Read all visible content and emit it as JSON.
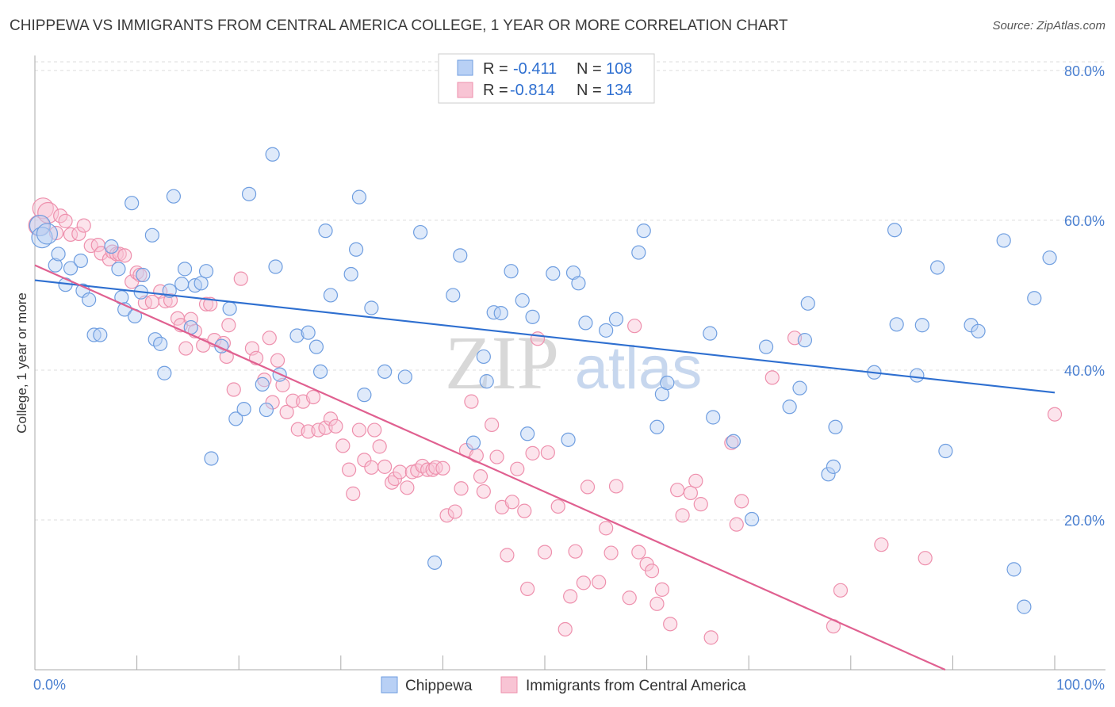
{
  "title": "CHIPPEWA VS IMMIGRANTS FROM CENTRAL AMERICA COLLEGE, 1 YEAR OR MORE CORRELATION CHART",
  "source": "Source: ZipAtlas.com",
  "watermark": {
    "zip": "ZIP",
    "atlas": "atlas"
  },
  "colors": {
    "chippewa_fill": "#b8d0f5",
    "chippewa_stroke": "#6f9ee0",
    "chippewa_line": "#2e6fd0",
    "central_fill": "#f8c4d4",
    "central_stroke": "#ee90ad",
    "central_line": "#e06090",
    "tick": "#4a7fd0",
    "grid": "#dddddd"
  },
  "legend": {
    "row1": {
      "r_label": "R =",
      "r_value": "-0.411",
      "n_label": "N =",
      "n_value": "108"
    },
    "row2": {
      "r_label": "R =",
      "r_value": "-0.814",
      "n_label": "N =",
      "n_value": "134"
    }
  },
  "chart_data": {
    "type": "scatter",
    "title": "CHIPPEWA VS IMMIGRANTS FROM CENTRAL AMERICA COLLEGE, 1 YEAR OR MORE CORRELATION CHART",
    "xlabel": "",
    "ylabel": "College, 1 year or more",
    "xlim": [
      0,
      100
    ],
    "ylim": [
      0,
      82
    ],
    "x_tick_labels": [
      "0.0%",
      "100.0%"
    ],
    "y_ticks": [
      20,
      40,
      60,
      80
    ],
    "y_tick_labels": [
      "20.0%",
      "40.0%",
      "60.0%",
      "80.0%"
    ],
    "grid": true,
    "legend_position": "top-center",
    "series": [
      {
        "name": "Chippewa",
        "color": "#b8d0f5",
        "trend": {
          "x": [
            0,
            100
          ],
          "y": [
            52.0,
            37.0
          ]
        },
        "points": [
          [
            0.5,
            59.3
          ],
          [
            0.7,
            57.7
          ],
          [
            1.2,
            58.2
          ],
          [
            2.0,
            54.0
          ],
          [
            2.3,
            55.5
          ],
          [
            3.0,
            51.4
          ],
          [
            3.5,
            53.6
          ],
          [
            4.5,
            54.6
          ],
          [
            4.7,
            50.6
          ],
          [
            5.3,
            49.4
          ],
          [
            5.8,
            44.7
          ],
          [
            6.4,
            44.7
          ],
          [
            7.5,
            56.5
          ],
          [
            8.2,
            53.5
          ],
          [
            8.5,
            49.7
          ],
          [
            8.8,
            48.1
          ],
          [
            9.5,
            62.3
          ],
          [
            9.8,
            47.2
          ],
          [
            10.4,
            50.4
          ],
          [
            10.6,
            52.7
          ],
          [
            11.5,
            58.0
          ],
          [
            11.8,
            44.1
          ],
          [
            12.3,
            43.5
          ],
          [
            12.7,
            39.6
          ],
          [
            13.2,
            50.6
          ],
          [
            13.6,
            63.2
          ],
          [
            14.4,
            51.5
          ],
          [
            14.7,
            53.5
          ],
          [
            15.3,
            45.7
          ],
          [
            15.7,
            51.3
          ],
          [
            16.3,
            51.6
          ],
          [
            16.8,
            53.2
          ],
          [
            17.3,
            28.2
          ],
          [
            18.3,
            43.2
          ],
          [
            19.1,
            48.2
          ],
          [
            19.7,
            33.5
          ],
          [
            20.5,
            34.8
          ],
          [
            21.0,
            63.5
          ],
          [
            22.3,
            38.1
          ],
          [
            22.7,
            34.7
          ],
          [
            23.3,
            68.8
          ],
          [
            23.6,
            53.8
          ],
          [
            24.0,
            39.4
          ],
          [
            25.7,
            44.6
          ],
          [
            26.8,
            45.0
          ],
          [
            27.6,
            43.1
          ],
          [
            28.0,
            39.8
          ],
          [
            28.5,
            58.6
          ],
          [
            29.0,
            50.0
          ],
          [
            31.0,
            52.8
          ],
          [
            31.5,
            56.1
          ],
          [
            31.8,
            63.1
          ],
          [
            32.3,
            36.7
          ],
          [
            33.0,
            48.3
          ],
          [
            34.3,
            39.8
          ],
          [
            36.3,
            39.1
          ],
          [
            37.8,
            58.4
          ],
          [
            39.2,
            14.3
          ],
          [
            41.0,
            50.0
          ],
          [
            41.7,
            55.3
          ],
          [
            43.0,
            30.3
          ],
          [
            44.0,
            41.8
          ],
          [
            44.3,
            38.5
          ],
          [
            45.0,
            47.7
          ],
          [
            45.7,
            47.6
          ],
          [
            46.7,
            53.2
          ],
          [
            47.8,
            49.3
          ],
          [
            48.3,
            31.5
          ],
          [
            48.8,
            47.1
          ],
          [
            50.8,
            52.9
          ],
          [
            52.3,
            30.7
          ],
          [
            52.8,
            53.0
          ],
          [
            53.3,
            51.6
          ],
          [
            54.0,
            46.3
          ],
          [
            56.0,
            45.3
          ],
          [
            57.0,
            46.8
          ],
          [
            59.2,
            55.7
          ],
          [
            59.7,
            58.6
          ],
          [
            61.0,
            32.4
          ],
          [
            61.5,
            36.8
          ],
          [
            62.0,
            38.3
          ],
          [
            66.2,
            44.9
          ],
          [
            66.5,
            33.7
          ],
          [
            68.5,
            30.5
          ],
          [
            70.3,
            20.1
          ],
          [
            71.7,
            43.1
          ],
          [
            74.0,
            35.1
          ],
          [
            75.0,
            37.6
          ],
          [
            75.5,
            44.0
          ],
          [
            75.8,
            48.9
          ],
          [
            77.8,
            26.1
          ],
          [
            78.3,
            27.1
          ],
          [
            78.5,
            32.4
          ],
          [
            82.3,
            39.7
          ],
          [
            84.3,
            58.7
          ],
          [
            84.5,
            46.1
          ],
          [
            86.5,
            39.3
          ],
          [
            87.0,
            46.0
          ],
          [
            88.5,
            53.7
          ],
          [
            89.3,
            29.2
          ],
          [
            91.8,
            46.0
          ],
          [
            92.5,
            45.2
          ],
          [
            95.0,
            57.3
          ],
          [
            96.0,
            13.4
          ],
          [
            97.0,
            8.4
          ],
          [
            98.0,
            49.6
          ],
          [
            99.5,
            55.0
          ]
        ]
      },
      {
        "name": "Immigrants from Central America",
        "color": "#f8c4d4",
        "trend": {
          "x": [
            0,
            100
          ],
          "y": [
            54.0,
            -6.5
          ]
        },
        "points": [
          [
            0.4,
            59.3
          ],
          [
            0.8,
            61.6
          ],
          [
            1.3,
            61.0
          ],
          [
            2.1,
            58.3
          ],
          [
            2.5,
            60.6
          ],
          [
            3.0,
            59.9
          ],
          [
            3.5,
            58.1
          ],
          [
            4.3,
            58.2
          ],
          [
            4.8,
            59.3
          ],
          [
            5.5,
            56.6
          ],
          [
            6.2,
            56.7
          ],
          [
            6.5,
            55.6
          ],
          [
            7.3,
            54.8
          ],
          [
            7.6,
            55.8
          ],
          [
            8.0,
            55.5
          ],
          [
            8.3,
            55.5
          ],
          [
            8.8,
            55.3
          ],
          [
            9.5,
            51.8
          ],
          [
            10.0,
            53.0
          ],
          [
            10.3,
            52.7
          ],
          [
            10.8,
            49.0
          ],
          [
            11.5,
            49.1
          ],
          [
            12.3,
            50.5
          ],
          [
            12.8,
            49.2
          ],
          [
            13.3,
            49.3
          ],
          [
            14.0,
            46.9
          ],
          [
            14.3,
            46.0
          ],
          [
            14.8,
            42.9
          ],
          [
            15.3,
            46.8
          ],
          [
            15.7,
            45.2
          ],
          [
            16.5,
            43.3
          ],
          [
            16.8,
            48.8
          ],
          [
            17.2,
            48.8
          ],
          [
            17.6,
            44.0
          ],
          [
            18.5,
            43.6
          ],
          [
            18.8,
            41.8
          ],
          [
            19.0,
            46.0
          ],
          [
            19.5,
            37.4
          ],
          [
            20.2,
            52.2
          ],
          [
            21.3,
            42.9
          ],
          [
            21.7,
            41.6
          ],
          [
            22.5,
            38.7
          ],
          [
            23.0,
            44.3
          ],
          [
            23.3,
            35.7
          ],
          [
            23.8,
            41.3
          ],
          [
            24.3,
            38.0
          ],
          [
            24.7,
            34.4
          ],
          [
            25.3,
            35.9
          ],
          [
            25.8,
            32.1
          ],
          [
            26.3,
            35.8
          ],
          [
            26.8,
            31.8
          ],
          [
            27.3,
            36.4
          ],
          [
            27.8,
            32.0
          ],
          [
            28.5,
            32.3
          ],
          [
            29.0,
            33.5
          ],
          [
            29.5,
            32.5
          ],
          [
            30.2,
            29.9
          ],
          [
            30.8,
            26.7
          ],
          [
            31.2,
            23.5
          ],
          [
            31.8,
            32.0
          ],
          [
            32.3,
            28.0
          ],
          [
            33.0,
            27.0
          ],
          [
            33.3,
            32.0
          ],
          [
            33.8,
            29.8
          ],
          [
            34.3,
            27.1
          ],
          [
            35.0,
            25.0
          ],
          [
            35.3,
            25.5
          ],
          [
            35.8,
            26.4
          ],
          [
            36.5,
            24.3
          ],
          [
            37.0,
            26.4
          ],
          [
            37.5,
            26.6
          ],
          [
            38.0,
            27.2
          ],
          [
            38.5,
            26.7
          ],
          [
            39.0,
            26.7
          ],
          [
            39.3,
            27.0
          ],
          [
            40.0,
            26.9
          ],
          [
            40.4,
            20.6
          ],
          [
            41.2,
            21.1
          ],
          [
            41.8,
            24.2
          ],
          [
            42.3,
            29.3
          ],
          [
            42.8,
            35.8
          ],
          [
            43.3,
            28.6
          ],
          [
            43.7,
            25.8
          ],
          [
            44.0,
            23.8
          ],
          [
            44.8,
            32.7
          ],
          [
            45.3,
            28.4
          ],
          [
            45.8,
            21.7
          ],
          [
            46.3,
            15.3
          ],
          [
            46.8,
            22.4
          ],
          [
            47.3,
            26.8
          ],
          [
            48.0,
            21.2
          ],
          [
            48.3,
            10.8
          ],
          [
            48.8,
            28.9
          ],
          [
            49.3,
            44.2
          ],
          [
            50.0,
            15.7
          ],
          [
            50.3,
            29.0
          ],
          [
            51.3,
            21.8
          ],
          [
            52.0,
            5.4
          ],
          [
            52.5,
            9.8
          ],
          [
            53.0,
            15.8
          ],
          [
            53.8,
            11.6
          ],
          [
            54.2,
            24.4
          ],
          [
            55.3,
            11.7
          ],
          [
            56.0,
            18.9
          ],
          [
            56.5,
            15.6
          ],
          [
            57.0,
            24.5
          ],
          [
            58.3,
            9.6
          ],
          [
            58.8,
            45.9
          ],
          [
            59.2,
            15.7
          ],
          [
            60.0,
            14.1
          ],
          [
            60.5,
            13.2
          ],
          [
            61.0,
            8.8
          ],
          [
            61.5,
            10.7
          ],
          [
            62.3,
            6.1
          ],
          [
            63.0,
            24.0
          ],
          [
            63.5,
            20.6
          ],
          [
            64.3,
            23.6
          ],
          [
            64.8,
            25.2
          ],
          [
            65.3,
            22.1
          ],
          [
            66.3,
            4.3
          ],
          [
            68.3,
            30.3
          ],
          [
            68.8,
            19.4
          ],
          [
            69.3,
            22.5
          ],
          [
            72.3,
            39.0
          ],
          [
            74.5,
            44.3
          ],
          [
            78.3,
            5.8
          ],
          [
            79.0,
            10.6
          ],
          [
            83.0,
            16.7
          ],
          [
            87.3,
            14.9
          ],
          [
            100.0,
            34.1
          ]
        ]
      }
    ]
  }
}
